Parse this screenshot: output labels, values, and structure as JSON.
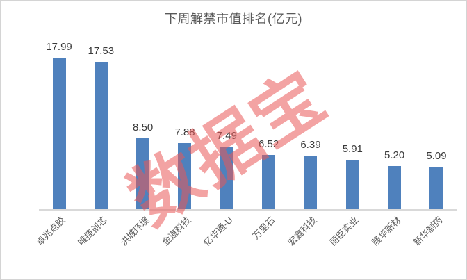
{
  "chart_data": {
    "type": "bar",
    "title": "下周解禁市值排名(亿元)",
    "categories": [
      "卓兆点胶",
      "唯捷创芯",
      "洪城环境",
      "金道科技",
      "亿华通-U",
      "万里石",
      "宏鑫科技",
      "丽臣实业",
      "隆华新材",
      "新华制药"
    ],
    "values": [
      17.99,
      17.53,
      8.5,
      7.88,
      7.49,
      6.52,
      6.39,
      5.91,
      5.2,
      5.09
    ],
    "value_labels": [
      "17.99",
      "17.53",
      "8.50",
      "7.88",
      "7.49",
      "6.52",
      "6.39",
      "5.91",
      "5.20",
      "5.09"
    ],
    "xlabel": "",
    "ylabel": "",
    "ylim": [
      0,
      18
    ],
    "grid": false,
    "legend": false,
    "bar_color": "#4F81BD",
    "axis_line_color": "#D9D9D9",
    "title_color": "#595959",
    "value_label_color": "#3A3A3A",
    "category_label_color": "#595959",
    "watermark": {
      "text": "数据宝",
      "color": "rgba(233,88,88,0.55)"
    }
  }
}
